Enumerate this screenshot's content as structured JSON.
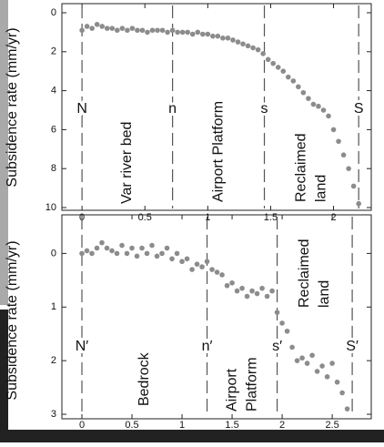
{
  "chart_data": [
    {
      "type": "scatter",
      "ylabel": "Subsidence rate (mm/yr)",
      "color": "#8c8c8c",
      "y_inverted": true,
      "xlim": [
        -0.16,
        2.3
      ],
      "xticks": [
        0,
        0.5,
        1,
        1.5,
        2
      ],
      "ylim": [
        0,
        10
      ],
      "yticks": [
        0,
        2,
        4,
        6,
        8,
        10
      ],
      "x": [
        0,
        0.04,
        0.08,
        0.12,
        0.16,
        0.2,
        0.24,
        0.28,
        0.32,
        0.36,
        0.4,
        0.44,
        0.48,
        0.52,
        0.56,
        0.6,
        0.64,
        0.68,
        0.72,
        0.76,
        0.8,
        0.84,
        0.88,
        0.92,
        0.96,
        1.0,
        1.04,
        1.08,
        1.12,
        1.16,
        1.2,
        1.24,
        1.28,
        1.32,
        1.36,
        1.4,
        1.44,
        1.48,
        1.52,
        1.56,
        1.6,
        1.64,
        1.68,
        1.72,
        1.76,
        1.8,
        1.84,
        1.88,
        1.92,
        1.96,
        2.0,
        2.04,
        2.08,
        2.12,
        2.16,
        2.2
      ],
      "values": [
        0.9,
        0.7,
        0.8,
        0.6,
        0.7,
        0.8,
        0.8,
        0.9,
        0.8,
        0.9,
        0.8,
        0.9,
        0.9,
        1.0,
        0.9,
        0.9,
        0.9,
        1.0,
        0.9,
        1.0,
        1.0,
        1.0,
        1.1,
        1.0,
        1.1,
        1.1,
        1.2,
        1.2,
        1.3,
        1.3,
        1.4,
        1.5,
        1.6,
        1.7,
        1.8,
        1.9,
        2.1,
        2.4,
        2.6,
        2.8,
        3.0,
        3.3,
        3.5,
        3.8,
        4.1,
        4.4,
        4.7,
        4.8,
        5.0,
        5.3,
        6.0,
        6.6,
        7.3,
        8.0,
        8.9,
        9.8
      ],
      "markers": [
        {
          "x": 0,
          "label": "N"
        },
        {
          "x": 0.72,
          "label": "n"
        },
        {
          "x": 1.45,
          "label": "s"
        },
        {
          "x": 2.2,
          "label": "S"
        }
      ],
      "regions": [
        [
          "Var river bed"
        ],
        [
          "Airport Platform"
        ],
        [
          "Reclaimed",
          "land"
        ]
      ]
    },
    {
      "type": "scatter",
      "ylabel": "Subsidence rate (mm/yr)",
      "color": "#8c8c8c",
      "y_inverted": true,
      "xlim": [
        -0.2,
        2.89
      ],
      "xticks": [
        0,
        0.5,
        1,
        1.5,
        2,
        2.5
      ],
      "ylim": [
        -0.55,
        3.05
      ],
      "yticks": [
        0,
        1,
        2,
        3
      ],
      "x": [
        0,
        0.05,
        0.1,
        0.15,
        0.2,
        0.25,
        0.3,
        0.35,
        0.4,
        0.45,
        0.5,
        0.55,
        0.6,
        0.65,
        0.7,
        0.75,
        0.8,
        0.85,
        0.9,
        0.95,
        1.0,
        1.05,
        1.1,
        1.15,
        1.2,
        1.25,
        1.3,
        1.35,
        1.4,
        1.45,
        1.5,
        1.55,
        1.6,
        1.65,
        1.7,
        1.75,
        1.8,
        1.85,
        1.9,
        1.95,
        2.0,
        2.05,
        2.1,
        2.15,
        2.2,
        2.25,
        2.3,
        2.35,
        2.4,
        2.45,
        2.5,
        2.55,
        2.6,
        2.65
      ],
      "values": [
        0.0,
        -0.05,
        0.0,
        -0.1,
        -0.2,
        -0.1,
        -0.05,
        0.0,
        -0.15,
        0.0,
        -0.1,
        0.05,
        -0.1,
        0.0,
        -0.15,
        0.05,
        0.0,
        -0.1,
        0.1,
        0.0,
        0.15,
        0.1,
        0.3,
        0.2,
        0.25,
        0.15,
        0.3,
        0.35,
        0.4,
        0.6,
        0.55,
        0.7,
        0.65,
        0.8,
        0.7,
        0.75,
        0.65,
        0.8,
        0.7,
        1.1,
        1.3,
        1.45,
        1.75,
        2.0,
        1.95,
        2.05,
        1.9,
        2.2,
        2.1,
        2.3,
        2.05,
        2.4,
        2.6,
        2.9
      ],
      "markers": [
        {
          "x": 0,
          "label": "N′"
        },
        {
          "x": 1.25,
          "label": "n′"
        },
        {
          "x": 1.95,
          "label": "s′"
        },
        {
          "x": 2.7,
          "label": "S′"
        }
      ],
      "regions": [
        [
          "Bedrock"
        ],
        [
          "Airport",
          "Platform"
        ],
        [
          "Reclaimed",
          "land"
        ]
      ]
    }
  ]
}
